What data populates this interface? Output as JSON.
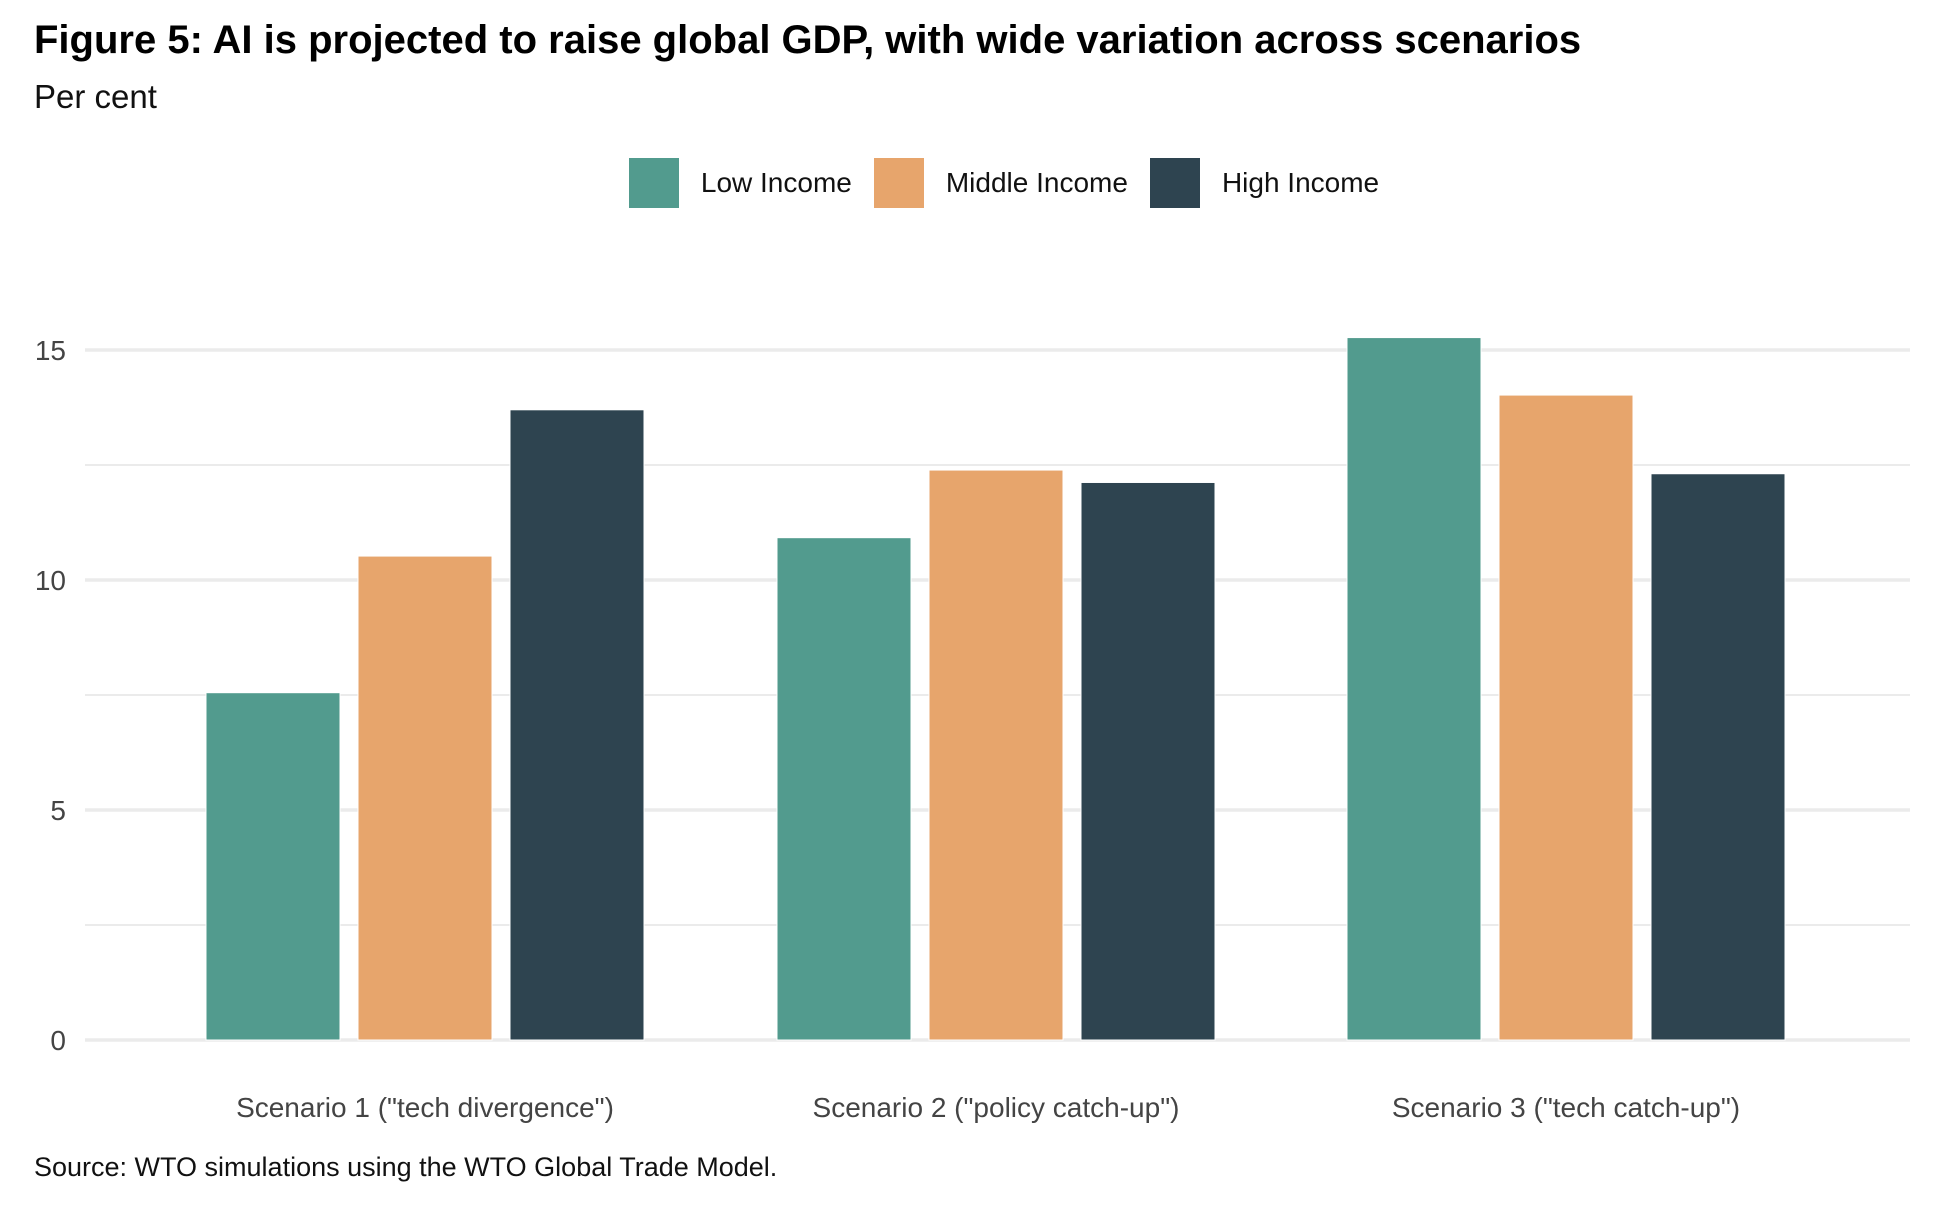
{
  "title": "Figure 5: AI is projected to raise global GDP, with wide variation across scenarios",
  "subtitle": "Per cent",
  "source": "Source: WTO simulations using the WTO Global Trade Model.",
  "chart_data": {
    "type": "bar",
    "categories": [
      "Scenario 1 (\"tech divergence\")",
      "Scenario 2 (\"policy catch-up\")",
      "Scenario 3 (\"tech catch-up\")"
    ],
    "series": [
      {
        "name": "Low Income",
        "color": "#529b8e",
        "values": [
          7.55,
          10.92,
          15.27
        ]
      },
      {
        "name": "Middle Income",
        "color": "#e7a56c",
        "values": [
          10.52,
          12.39,
          14.02
        ]
      },
      {
        "name": "High Income",
        "color": "#2e4450",
        "values": [
          13.7,
          12.12,
          12.31
        ]
      }
    ],
    "yticks": [
      "0",
      "5",
      "10",
      "15"
    ],
    "ylim": [
      0,
      15.5
    ],
    "grid": true,
    "legend": "top-center"
  }
}
